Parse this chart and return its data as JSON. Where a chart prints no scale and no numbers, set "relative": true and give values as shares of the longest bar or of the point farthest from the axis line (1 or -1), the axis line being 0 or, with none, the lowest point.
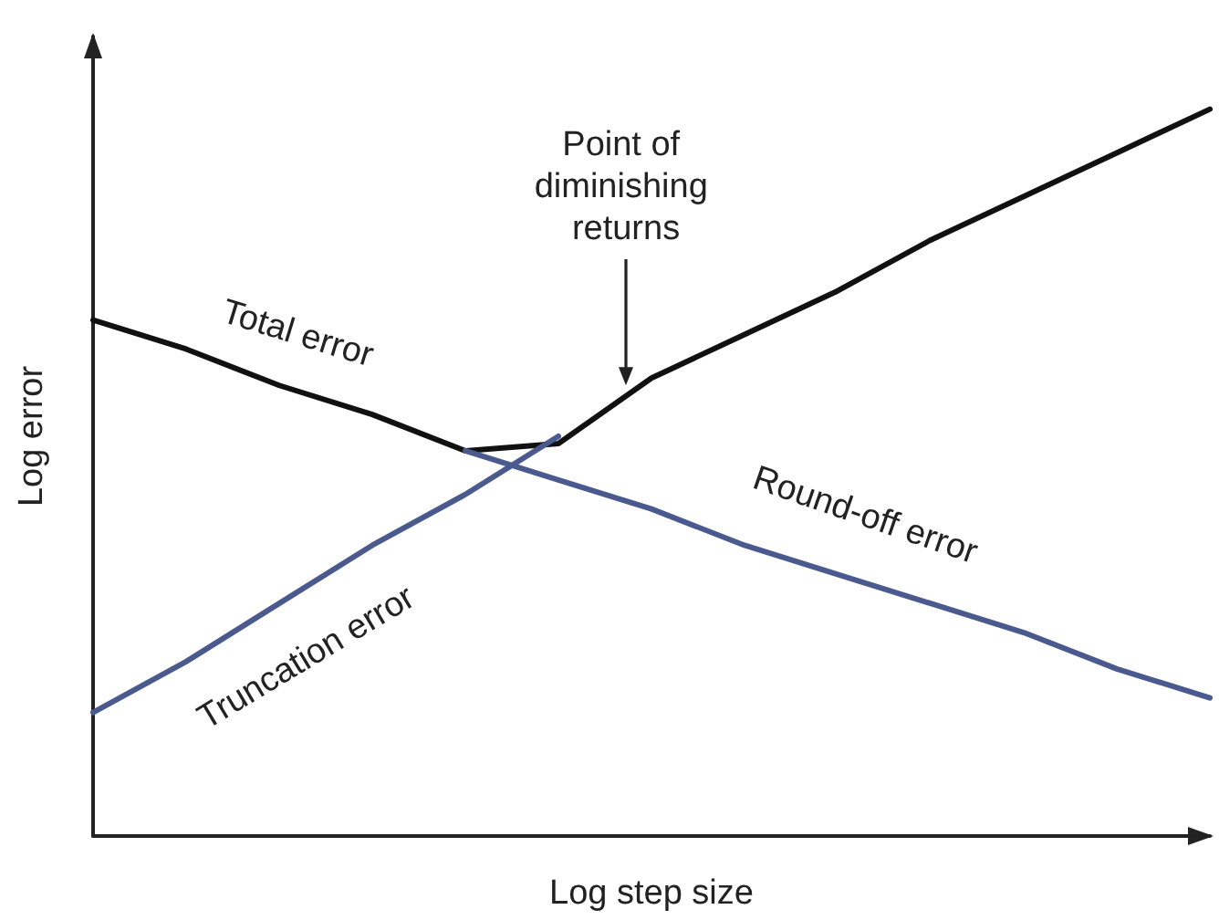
{
  "chart_data": {
    "type": "line",
    "relative": true,
    "xlabel": "Log step size",
    "ylabel": "Log error",
    "categories": [
      null,
      null,
      null,
      null,
      null,
      null,
      null,
      null,
      null,
      null,
      null,
      null,
      null
    ],
    "series": [
      {
        "name": "Total error",
        "color": "#111111",
        "values": [
          0.71,
          0.67,
          0.62,
          0.58,
          0.53,
          0.54,
          0.63,
          0.69,
          0.75,
          0.82,
          0.88,
          0.94,
          1
        ]
      },
      {
        "name": "Truncation error",
        "color": "#4a5a8f",
        "values": [
          0.17,
          0.24,
          0.32,
          0.4,
          0.47,
          0.55,
          null,
          null,
          null,
          null,
          null,
          null,
          null
        ]
      },
      {
        "name": "Round-off error",
        "color": "#4a5a8f",
        "values": [
          null,
          null,
          null,
          null,
          0.53,
          0.49,
          0.45,
          0.4,
          0.36,
          0.32,
          0.28,
          0.23,
          0.19
        ]
      }
    ],
    "annotations": [
      "Point of diminishing returns"
    ],
    "grid": false,
    "legend": false,
    "marker": "none",
    "line_style": "solid"
  }
}
